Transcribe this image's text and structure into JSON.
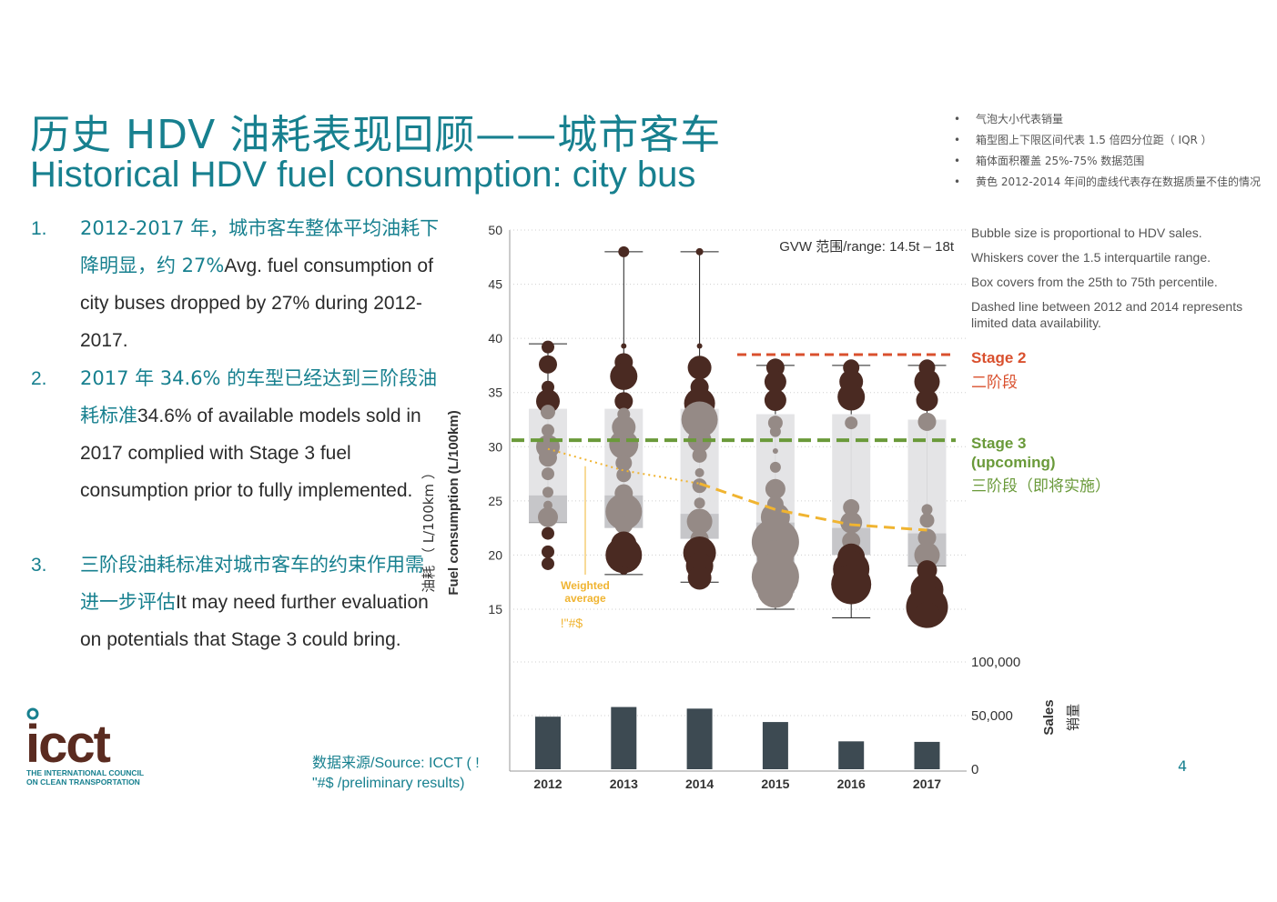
{
  "title_cn": "历史 HDV 油耗表现回顾——城市客车",
  "title_en": "Historical HDV fuel consumption: city bus",
  "points": [
    {
      "num": "1.",
      "cn": "2012-2017 年，城市客车整体平均油耗下降明显，约 27%",
      "en": "Avg. fuel consumption of city buses dropped by 27% during 2012-2017."
    },
    {
      "num": "2.",
      "cn": "2017  年 34.6% 的车型已经达到三阶段油耗标准",
      "en": "34.6% of available models sold in 2017 complied with Stage 3 fuel consumption prior to fully implemented."
    },
    {
      "num": "3.",
      "cn": "三阶段油耗标准对城市客车的约束作用需进一步评估",
      "en": "It may need further evaluation on potentials that Stage 3 could bring."
    }
  ],
  "notes_cn": [
    "气泡大小代表销量",
    "箱型图上下限区间代表  1.5 倍四分位距（ IQR ）",
    "箱体面积覆盖 25%-75% 数据范围",
    "黄色 2012-2014  年间的虚线代表存在数据质量不佳的情况"
  ],
  "notes_en": [
    "Bubble size is proportional to HDV sales.",
    "Whiskers cover the 1.5 interquartile range.",
    "Box covers from the 25th to 75th percentile.",
    "Dashed line between 2012 and 2014 represents limited data availability."
  ],
  "source_line1": "数据来源/Source: ICCT ( !",
  "source_line2": "\"#$      /preliminary results)",
  "page_number": "4",
  "logo": {
    "word": "icct",
    "line1": "THE INTERNATIONAL COUNCIL",
    "line2": "ON CLEAN TRANSPORTATION",
    "color": "#5a2b20",
    "accent": "#17808f"
  },
  "colors": {
    "bubble": "#4a2a22",
    "bubble_light": "#958a86",
    "box": "#e3e3e5",
    "box_dark": "#c4c4c7",
    "stage2": "#d9502e",
    "stage3": "#6a9a3a",
    "avg": "#f0b431",
    "sales_bar": "#3d4a52",
    "teal": "#17808f"
  },
  "chart_data": {
    "type": "box-bubble",
    "annotation": "GVW 范围/range: 14.5t – 18t",
    "ylabel_cn": "油耗 （ L/100km ）",
    "ylabel": "Fuel consumption (L/100km)",
    "ylim": [
      15,
      50
    ],
    "yticks": [
      15,
      20,
      25,
      30,
      35,
      40,
      45,
      50
    ],
    "categories": [
      "2012",
      "2013",
      "2014",
      "2015",
      "2016",
      "2017"
    ],
    "whisker_low": [
      23,
      18.2,
      17.5,
      15,
      14.2,
      19
    ],
    "whisker_high": [
      39.5,
      48,
      48,
      37.5,
      37.5,
      37.5
    ],
    "q1": [
      23,
      22.5,
      21.5,
      16.5,
      20,
      19
    ],
    "q3": [
      33.5,
      33.5,
      33.5,
      33,
      33,
      32.5
    ],
    "dark_band_top": [
      25.5,
      25.5,
      23.8,
      23,
      22.5,
      22
    ],
    "weighted_average": [
      29.8,
      27.8,
      26.6,
      24.2,
      22.8,
      22.3
    ],
    "weighted_average_label": "Weighted average",
    "weighted_average_label2": "!\"#$",
    "stage2": {
      "value": 38.5,
      "label_en": "Stage 2",
      "label_cn": "二阶段"
    },
    "stage3": {
      "value": 30.6,
      "label_en": "Stage 3 (upcoming)",
      "label_cn": "三阶段（即将实施）"
    },
    "sales": {
      "label_en": "Sales",
      "label_cn": "销量",
      "ticks": [
        "0",
        "50,000",
        "100,000"
      ],
      "ylim": [
        0,
        100000
      ],
      "values": [
        49000,
        58000,
        56500,
        44000,
        26000,
        25500
      ]
    }
  }
}
